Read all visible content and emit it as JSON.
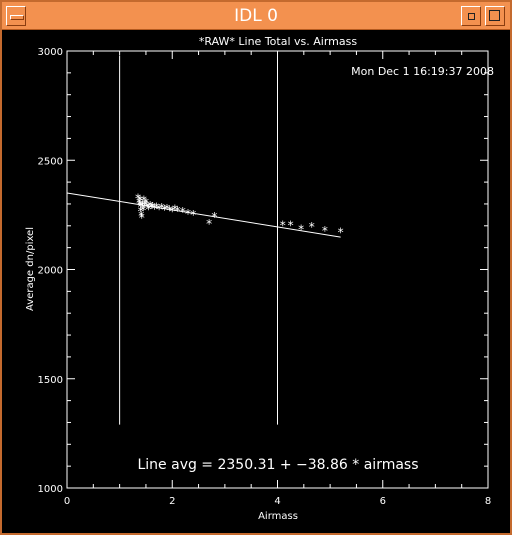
{
  "window": {
    "title": "IDL 0"
  },
  "colors": {
    "titlebar": "#f3914f",
    "border": "#c46a2e",
    "plot_bg": "#000000",
    "plot_fg": "#ffffff"
  },
  "icons": {
    "menu": "window-menu-icon",
    "minimize": "minimize-icon",
    "maximize": "maximize-icon"
  },
  "chart_data": {
    "type": "scatter",
    "title": "*RAW* Line Total vs. Airmass",
    "xlabel": "Airmass",
    "ylabel": "Average dn/pixel",
    "timestamp": "Mon Dec  1 16:19:37 2008",
    "annotation": "Line avg = 2350.31 + −38.86 * airmass",
    "xlim": [
      0,
      8
    ],
    "ylim": [
      1000,
      3000
    ],
    "xticks": [
      0,
      2,
      4,
      6,
      8
    ],
    "yticks": [
      1000,
      1500,
      2000,
      2500,
      3000
    ],
    "fit": {
      "intercept": 2350.31,
      "slope": -38.86,
      "x_range": [
        0,
        5.2
      ]
    },
    "vertical_lines": [
      1,
      4
    ],
    "vertical_line_top": 2980,
    "vertical_line_bottom": 1290,
    "series": [
      {
        "values": [
          [
            1.35,
            2330
          ],
          [
            1.37,
            2310
          ],
          [
            1.38,
            2300
          ],
          [
            1.39,
            2320
          ],
          [
            1.4,
            2290
          ],
          [
            1.4,
            2270
          ],
          [
            1.41,
            2250
          ],
          [
            1.42,
            2240
          ],
          [
            1.43,
            2300
          ],
          [
            1.44,
            2285
          ],
          [
            1.45,
            2275
          ],
          [
            1.46,
            2320
          ],
          [
            1.48,
            2300
          ],
          [
            1.5,
            2310
          ],
          [
            1.52,
            2290
          ],
          [
            1.55,
            2280
          ],
          [
            1.58,
            2295
          ],
          [
            1.6,
            2285
          ],
          [
            1.63,
            2290
          ],
          [
            1.66,
            2282
          ],
          [
            1.7,
            2288
          ],
          [
            1.75,
            2280
          ],
          [
            1.8,
            2285
          ],
          [
            1.85,
            2278
          ],
          [
            1.9,
            2282
          ],
          [
            1.95,
            2275
          ],
          [
            2.0,
            2270
          ],
          [
            2.05,
            2280
          ],
          [
            2.1,
            2272
          ],
          [
            2.2,
            2268
          ],
          [
            2.3,
            2258
          ],
          [
            2.4,
            2255
          ],
          [
            2.7,
            2212
          ],
          [
            2.8,
            2245
          ],
          [
            4.1,
            2205
          ],
          [
            4.25,
            2205
          ],
          [
            4.45,
            2188
          ],
          [
            4.65,
            2198
          ],
          [
            4.9,
            2180
          ],
          [
            5.2,
            2175
          ]
        ]
      }
    ]
  }
}
